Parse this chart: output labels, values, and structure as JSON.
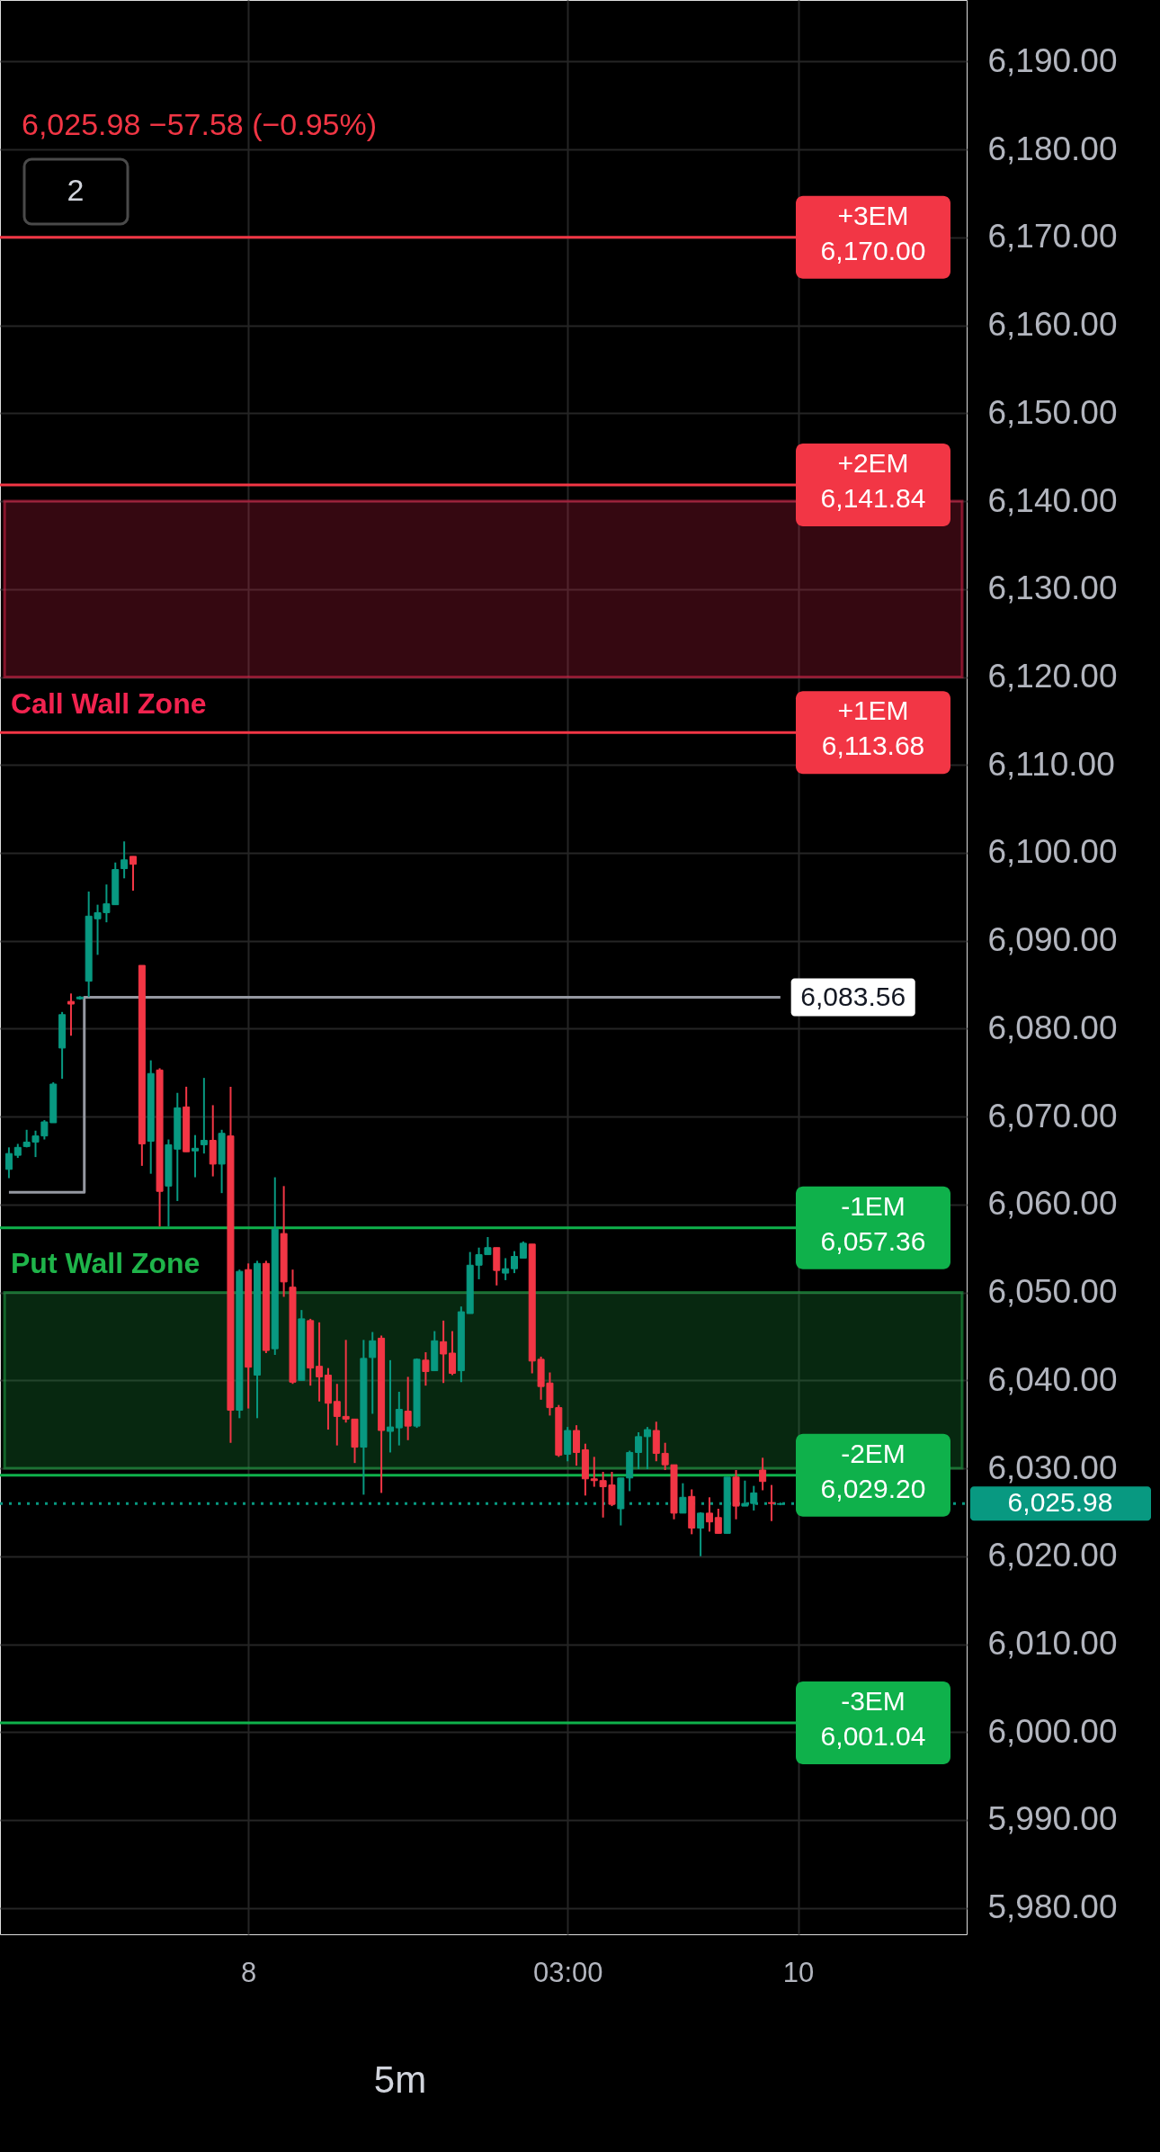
{
  "chart_data": {
    "type": "candlestick",
    "categories": [
      null,
      null,
      null,
      null,
      null,
      null,
      null,
      null,
      null,
      null,
      null,
      null,
      null,
      null,
      null,
      null,
      null,
      null,
      null,
      null,
      null,
      null,
      null,
      null,
      null,
      null,
      null,
      "8",
      null,
      null,
      null,
      null,
      null,
      null,
      null,
      null,
      null,
      null,
      null,
      null,
      null,
      null,
      null,
      null,
      null,
      null,
      null,
      null,
      null,
      null,
      null,
      null,
      null,
      null,
      null,
      null,
      null,
      null,
      null,
      null,
      null,
      null,
      null,
      "03:00",
      null,
      null,
      null,
      null,
      null,
      null,
      null,
      null,
      null,
      null,
      null,
      null,
      null,
      null,
      null,
      null,
      null,
      null,
      null,
      null,
      null,
      null,
      null,
      null,
      null,
      "10",
      null,
      null,
      null,
      null,
      null,
      null,
      null,
      null,
      null,
      null,
      null,
      null,
      null,
      null,
      null,
      null,
      null,
      null
    ],
    "ohlc": [
      [
        6064.0,
        6066.5,
        6063.0,
        6065.8
      ],
      [
        6065.6,
        6066.9,
        6065.3,
        6066.5
      ],
      [
        6066.6,
        6068.5,
        6066.5,
        6067.1
      ],
      [
        6067.1,
        6068.4,
        6065.4,
        6067.8
      ],
      [
        6067.8,
        6069.6,
        6067.4,
        6069.4
      ],
      [
        6069.3,
        6073.9,
        6069.3,
        6073.7
      ],
      [
        6077.8,
        6081.9,
        6074.3,
        6081.6
      ],
      [
        6083.1,
        6084.0,
        6079.2,
        6082.8
      ],
      [
        6083.4,
        6083.7,
        6083.3,
        6083.6
      ],
      [
        6085.4,
        6095.6,
        6083.6,
        6092.8
      ],
      [
        6092.5,
        6094.1,
        6088.4,
        6093.2
      ],
      [
        6093.2,
        6096.4,
        6092.1,
        6094.2
      ],
      [
        6094.1,
        6098.9,
        6094.1,
        6098.1
      ],
      [
        6098.2,
        6101.3,
        6097.1,
        6099.2
      ],
      [
        6099.6,
        6099.6,
        6095.7,
        6098.7
      ],
      [
        6087.2,
        6087.2,
        6064.4,
        6066.9
      ],
      [
        6067.2,
        6076.4,
        6063.5,
        6074.9
      ],
      [
        6075.3,
        6075.5,
        6057.5,
        6061.5
      ],
      [
        6062.1,
        6067.4,
        6057.5,
        6066.8
      ],
      [
        6066.3,
        6072.7,
        6060.4,
        6071.0
      ],
      [
        6071.1,
        6073.4,
        6066.0,
        6066.0
      ],
      [
        6066.1,
        6067.9,
        6063.1,
        6066.4
      ],
      [
        6066.8,
        6074.4,
        6065.8,
        6067.3
      ],
      [
        6067.3,
        6071.3,
        6063.2,
        6064.6
      ],
      [
        6064.6,
        6068.5,
        6061.3,
        6068.1
      ],
      [
        6067.8,
        6073.4,
        6032.9,
        6036.6
      ],
      [
        6036.6,
        6052.6,
        6035.7,
        6052.4
      ],
      [
        6052.6,
        6053.3,
        6036.8,
        6041.5
      ],
      [
        6040.6,
        6053.6,
        6035.7,
        6053.3
      ],
      [
        6053.3,
        6053.6,
        6043.1,
        6043.4
      ],
      [
        6043.6,
        6063.1,
        6042.9,
        6057.2
      ],
      [
        6056.7,
        6062.1,
        6049.5,
        6051.2
      ],
      [
        6050.6,
        6052.6,
        6039.6,
        6039.8
      ],
      [
        6040.0,
        6048.0,
        6040.0,
        6047.0
      ],
      [
        6046.8,
        6047.0,
        6039.4,
        6041.4
      ],
      [
        6041.6,
        6046.6,
        6037.6,
        6040.4
      ],
      [
        6040.6,
        6041.4,
        6034.4,
        6037.4
      ],
      [
        6037.6,
        6039.6,
        6032.6,
        6035.9
      ],
      [
        6035.9,
        6044.6,
        6035.2,
        6035.6
      ],
      [
        6035.6,
        6035.6,
        6030.6,
        6032.4
      ],
      [
        6032.4,
        6044.6,
        6027.0,
        6042.5
      ],
      [
        6042.6,
        6045.5,
        6036.2,
        6044.5
      ],
      [
        6044.8,
        6045.1,
        6027.2,
        6034.3
      ],
      [
        6034.2,
        6042.3,
        6031.8,
        6034.7
      ],
      [
        6034.6,
        6038.7,
        6032.6,
        6036.7
      ],
      [
        6036.5,
        6040.4,
        6033.2,
        6034.8
      ],
      [
        6034.8,
        6042.5,
        6034.6,
        6042.4
      ],
      [
        6042.3,
        6043.2,
        6039.4,
        6041.0
      ],
      [
        6041.1,
        6045.6,
        6041.1,
        6044.5
      ],
      [
        6044.4,
        6046.8,
        6039.7,
        6043.0
      ],
      [
        6043.1,
        6045.6,
        6040.6,
        6040.8
      ],
      [
        6041.1,
        6048.4,
        6039.8,
        6047.8
      ],
      [
        6047.6,
        6054.6,
        6047.6,
        6053.1
      ],
      [
        6053.1,
        6055.1,
        6051.5,
        6054.3
      ],
      [
        6054.3,
        6056.3,
        6054.3,
        6055.1
      ],
      [
        6055.1,
        6055.1,
        6050.8,
        6052.5
      ],
      [
        6052.2,
        6053.9,
        6051.4,
        6052.7
      ],
      [
        6052.7,
        6054.7,
        6052.2,
        6054.1
      ],
      [
        6053.9,
        6055.8,
        6053.9,
        6055.6
      ],
      [
        6055.5,
        6055.5,
        6040.8,
        6042.2
      ],
      [
        6042.4,
        6042.7,
        6037.8,
        6039.3
      ],
      [
        6039.7,
        6040.9,
        6036.0,
        6036.9
      ],
      [
        6036.9,
        6037.2,
        6031.3,
        6031.5
      ],
      [
        6031.6,
        6034.7,
        6030.8,
        6034.3
      ],
      [
        6034.3,
        6034.9,
        6030.3,
        6031.8
      ],
      [
        6032.1,
        6032.8,
        6026.9,
        6028.8
      ],
      [
        6028.8,
        6031.3,
        6027.9,
        6028.6
      ],
      [
        6028.6,
        6029.6,
        6024.4,
        6027.9
      ],
      [
        6028.1,
        6029.6,
        6025.7,
        6025.9
      ],
      [
        6025.4,
        6028.9,
        6023.5,
        6028.9
      ],
      [
        6028.9,
        6032.0,
        6027.4,
        6031.8
      ],
      [
        6031.8,
        6034.1,
        6029.9,
        6033.6
      ],
      [
        6033.6,
        6034.7,
        6029.9,
        6034.4
      ],
      [
        6034.3,
        6035.3,
        6030.8,
        6031.7
      ],
      [
        6031.7,
        6032.9,
        6029.8,
        6030.4
      ],
      [
        6030.4,
        6030.4,
        6024.2,
        6024.9
      ],
      [
        6024.9,
        6028.3,
        6024.9,
        6026.7
      ],
      [
        6026.8,
        6027.6,
        6022.5,
        6023.2
      ],
      [
        6023.2,
        6025.0,
        6020.0,
        6024.9
      ],
      [
        6024.9,
        6026.7,
        6022.8,
        6023.9
      ],
      [
        6024.4,
        6025.4,
        6022.6,
        6022.6
      ],
      [
        6022.6,
        6029.0,
        6022.6,
        6029.0
      ],
      [
        6029.0,
        6029.8,
        6024.2,
        6025.7
      ],
      [
        6025.7,
        6028.6,
        6025.7,
        6026.0
      ],
      [
        6026.0,
        6028.0,
        6025.2,
        6027.2
      ],
      [
        6029.8,
        6031.2,
        6027.5,
        6028.5
      ],
      [
        6026.1,
        6028.1,
        6024.0,
        6026.0
      ],
      [
        6025.9,
        6026.1,
        6025.8,
        6025.98
      ],
      null,
      null,
      null,
      null,
      null,
      null,
      null,
      null,
      null,
      null,
      null,
      null,
      null,
      null,
      null,
      null,
      null,
      null,
      null,
      null
    ],
    "colors": [
      "#089981",
      "#089981",
      "#089981",
      "#089981",
      "#089981",
      "#089981",
      "#089981",
      "#f23645",
      "#089981",
      "#089981",
      "#089981",
      "#089981",
      "#089981",
      "#089981",
      "#f23645",
      "#f23645",
      "#089981",
      "#f23645",
      "#089981",
      "#089981",
      "#f23645",
      "#089981",
      "#089981",
      "#f23645",
      "#089981",
      "#f23645",
      "#089981",
      "#f23645",
      "#089981",
      "#f23645",
      "#089981",
      "#f23645",
      "#f23645",
      "#089981",
      "#f23645",
      "#f23645",
      "#f23645",
      "#f23645",
      "#f23645",
      "#f23645",
      "#089981",
      "#089981",
      "#f23645",
      "#089981",
      "#089981",
      "#f23645",
      "#089981",
      "#f23645",
      "#089981",
      "#f23645",
      "#f23645",
      "#089981",
      "#089981",
      "#089981",
      "#089981",
      "#f23645",
      "#089981",
      "#089981",
      "#089981",
      "#f23645",
      "#f23645",
      "#f23645",
      "#f23645",
      "#089981",
      "#f23645",
      "#f23645",
      "#f23645",
      "#f23645",
      "#f23645",
      "#089981",
      "#089981",
      "#089981",
      "#089981",
      "#f23645",
      "#f23645",
      "#f23645",
      "#089981",
      "#f23645",
      "#089981",
      "#f23645",
      "#f23645",
      "#089981",
      "#f23645",
      "#089981",
      "#089981",
      "#f23645",
      "#f23645",
      "#089981",
      null,
      null,
      null,
      null,
      null,
      null,
      null,
      null,
      null,
      null,
      null,
      null,
      null,
      null,
      null,
      null,
      null,
      null,
      null,
      null
    ],
    "series": [
      {
        "type": "step",
        "color": "#9598a1",
        "values": [
          6061.4,
          6061.4,
          6061.4,
          6061.4,
          6061.4,
          6061.4,
          6061.4,
          6061.4,
          6061.4,
          6083.56,
          6083.56,
          6083.56,
          6083.56,
          6083.56,
          6083.56,
          6083.56,
          6083.56,
          6083.56,
          6083.56,
          6083.56,
          6083.56,
          6083.56,
          6083.56,
          6083.56,
          6083.56,
          6083.56,
          6083.56,
          6083.56,
          6083.56,
          6083.56,
          6083.56,
          6083.56,
          6083.56,
          6083.56,
          6083.56,
          6083.56,
          6083.56,
          6083.56,
          6083.56,
          6083.56,
          6083.56,
          6083.56,
          6083.56,
          6083.56,
          6083.56,
          6083.56,
          6083.56,
          6083.56,
          6083.56,
          6083.56,
          6083.56,
          6083.56,
          6083.56,
          6083.56,
          6083.56,
          6083.56,
          6083.56,
          6083.56,
          6083.56,
          6083.56,
          6083.56,
          6083.56,
          6083.56,
          6083.56,
          6083.56,
          6083.56,
          6083.56,
          6083.56,
          6083.56,
          6083.56,
          6083.56,
          6083.56,
          6083.56,
          6083.56,
          6083.56,
          6083.56,
          6083.56,
          6083.56,
          6083.56,
          6083.56,
          6083.56,
          6083.56,
          6083.56,
          6083.56,
          6083.56,
          6083.56,
          6083.56,
          6083.56,
          null,
          null,
          null,
          null,
          null,
          null,
          null,
          null,
          null,
          null,
          null,
          null,
          null,
          null,
          null,
          null,
          null,
          null,
          null,
          null
        ],
        "value_labels": [
          null,
          null,
          null,
          null,
          null,
          null,
          null,
          null,
          null,
          null,
          null,
          null,
          null,
          null,
          null,
          null,
          null,
          null,
          null,
          null,
          null,
          null,
          null,
          null,
          null,
          null,
          null,
          null,
          null,
          null,
          null,
          null,
          null,
          null,
          null,
          null,
          null,
          null,
          null,
          null,
          null,
          null,
          null,
          null,
          null,
          null,
          null,
          null,
          null,
          null,
          null,
          null,
          null,
          null,
          null,
          null,
          null,
          null,
          null,
          null,
          null,
          null,
          null,
          null,
          null,
          null,
          null,
          null,
          null,
          null,
          null,
          null,
          null,
          null,
          null,
          null,
          null,
          null,
          null,
          null,
          null,
          null,
          null,
          null,
          null,
          null,
          null,
          "6,083.56",
          null,
          null,
          null,
          null,
          null,
          null,
          null,
          null,
          null,
          null,
          null,
          null,
          null,
          null,
          null,
          null,
          null,
          null,
          null,
          null
        ]
      }
    ],
    "ylim": [
      5977,
      6197
    ],
    "yticks": [
      {
        "value": 5980,
        "label": "5,980.00"
      },
      {
        "value": 5990,
        "label": "5,990.00"
      },
      {
        "value": 6000,
        "label": "6,000.00"
      },
      {
        "value": 6010,
        "label": "6,010.00"
      },
      {
        "value": 6020,
        "label": "6,020.00"
      },
      {
        "value": 6030,
        "label": "6,030.00"
      },
      {
        "value": 6040,
        "label": "6,040.00"
      },
      {
        "value": 6050,
        "label": "6,050.00"
      },
      {
        "value": 6060,
        "label": "6,060.00"
      },
      {
        "value": 6070,
        "label": "6,070.00"
      },
      {
        "value": 6080,
        "label": "6,080.00"
      },
      {
        "value": 6090,
        "label": "6,090.00"
      },
      {
        "value": 6100,
        "label": "6,100.00"
      },
      {
        "value": 6110,
        "label": "6,110.00"
      },
      {
        "value": 6120,
        "label": "6,120.00"
      },
      {
        "value": 6130,
        "label": "6,130.00"
      },
      {
        "value": 6140,
        "label": "6,140.00"
      },
      {
        "value": 6150,
        "label": "6,150.00"
      },
      {
        "value": 6160,
        "label": "6,160.00"
      },
      {
        "value": 6170,
        "label": "6,170.00"
      },
      {
        "value": 6180,
        "label": "6,180.00"
      },
      {
        "value": 6190,
        "label": "6,190.00"
      }
    ],
    "ref_lines": [
      {
        "axis": "y",
        "value": 6170.0,
        "label": "+3EM",
        "color": "#f23645"
      },
      {
        "axis": "y",
        "value": 6141.84,
        "label": "+2EM",
        "color": "#f23645"
      },
      {
        "axis": "y",
        "value": 6113.68,
        "label": "+1EM",
        "color": "#f23645"
      },
      {
        "axis": "y",
        "value": 6057.36,
        "label": "-1EM",
        "color": "#0fb14b"
      },
      {
        "axis": "y",
        "value": 6029.2,
        "label": "-2EM",
        "color": "#0fb14b"
      },
      {
        "axis": "y",
        "value": 6001.04,
        "label": "-3EM",
        "color": "#0fb14b"
      },
      {
        "axis": "y",
        "value": 6025.98,
        "label": null,
        "color": "#089981",
        "line_style": "dotted"
      }
    ],
    "bands": [
      {
        "axis": "y",
        "from": 6120,
        "to": 6140,
        "label": "Call Wall Zone",
        "color": "#f2234f"
      },
      {
        "axis": "y",
        "from": 6030,
        "to": 6050,
        "label": "Put Wall Zone",
        "color": "#1fb44a"
      }
    ],
    "annotations": [
      "6,025.98 −57.58 (−0.95%)",
      "2",
      "5m",
      "6,170.00",
      "6,141.84",
      "6,113.68",
      "6,057.36",
      "6,029.20",
      "6,001.04",
      "6,025.98"
    ],
    "grid": true
  }
}
